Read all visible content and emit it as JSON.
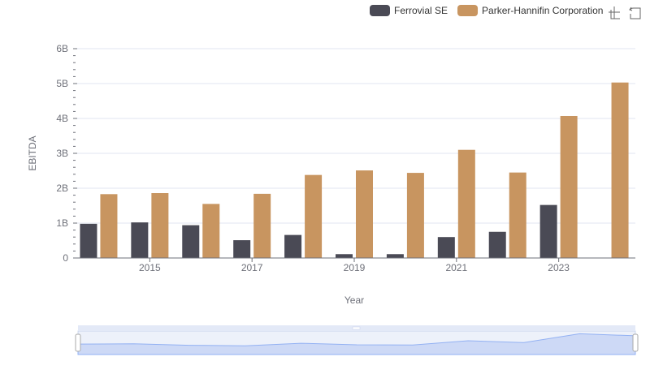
{
  "chart_data": {
    "type": "bar",
    "title": "",
    "xlabel": "Year",
    "ylabel": "EBITDA",
    "categories": [
      "2014",
      "2015",
      "2016",
      "2017",
      "2018",
      "2019",
      "2020",
      "2021",
      "2022",
      "2023",
      "2024"
    ],
    "x_tick_labels": [
      "2015",
      "2017",
      "2019",
      "2021",
      "2023"
    ],
    "y_tick_labels": [
      "0",
      "1B",
      "2B",
      "3B",
      "4B",
      "5B",
      "6B"
    ],
    "ylim": [
      0,
      6000000000
    ],
    "grid": "horizontal",
    "legend_position": "top-right",
    "series": [
      {
        "name": "Ferrovial SE",
        "color": "#4a4a55",
        "values": [
          980000000,
          1020000000,
          940000000,
          510000000,
          660000000,
          110000000,
          110000000,
          600000000,
          750000000,
          1520000000,
          null
        ]
      },
      {
        "name": "Parker-Hannifin Corporation",
        "color": "#c89560",
        "values": [
          1830000000,
          1860000000,
          1550000000,
          1840000000,
          2380000000,
          2510000000,
          2440000000,
          3100000000,
          2450000000,
          4070000000,
          5030000000
        ]
      }
    ]
  },
  "toolbox": {
    "icons": [
      "zoom-icon",
      "restore-icon"
    ]
  },
  "colors": {
    "grid": "#e0e6f1",
    "axis": "#6e7079",
    "slider_fill": "#d4dff9",
    "slider_line": "#8fb0f7"
  }
}
